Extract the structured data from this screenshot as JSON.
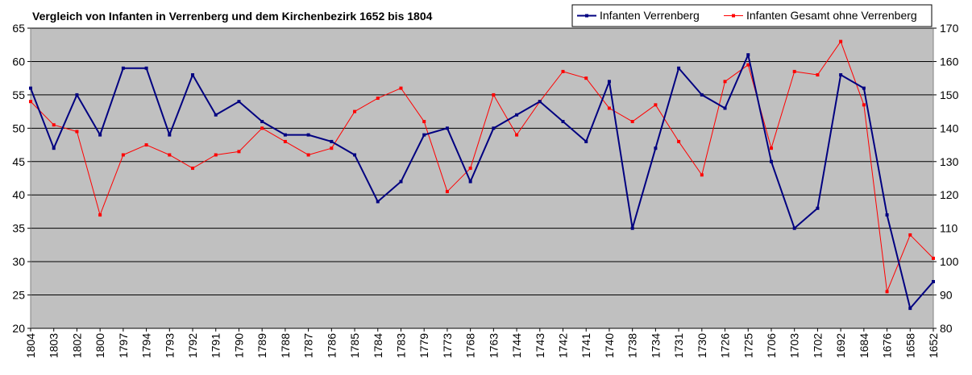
{
  "chart_data": {
    "type": "line",
    "title": "Vergleich von Infanten in Verrenberg und dem Kirchenbezirk 1652 bis 1804",
    "xlabel": "",
    "ylabel": "",
    "categories": [
      "1804",
      "1803",
      "1802",
      "1800",
      "1797",
      "1794",
      "1793",
      "1792",
      "1791",
      "1790",
      "1789",
      "1788",
      "1787",
      "1786",
      "1785",
      "1784",
      "1783",
      "1779",
      "1773",
      "1768",
      "1763",
      "1744",
      "1743",
      "1742",
      "1741",
      "1740",
      "1738",
      "1734",
      "1731",
      "1730",
      "1726",
      "1725",
      "1706",
      "1703",
      "1702",
      "1692",
      "1684",
      "1676",
      "1658",
      "1652"
    ],
    "series": [
      {
        "name": "Infanten Verrenberg",
        "axis": "left",
        "color": "#000080",
        "values": [
          56,
          47,
          55,
          49,
          59,
          59,
          49,
          58,
          52,
          54,
          51,
          49,
          49,
          48,
          46,
          39,
          42,
          49,
          50,
          42,
          50,
          52,
          54,
          51,
          48,
          57,
          35,
          47,
          59,
          55,
          53,
          61,
          45,
          35,
          38,
          58,
          56,
          37,
          23,
          27
        ]
      },
      {
        "name": "Infanten Gesamt ohne Verrenberg",
        "axis": "right",
        "color": "#ff0000",
        "values": [
          148,
          141,
          139,
          114,
          132,
          135,
          132,
          128,
          132,
          133,
          140,
          136,
          132,
          134,
          145,
          149,
          152,
          142,
          121,
          128,
          150,
          138,
          148,
          157,
          155,
          146,
          142,
          147,
          136,
          126,
          154,
          159,
          134,
          157,
          156,
          166,
          147,
          91,
          108,
          101
        ]
      }
    ],
    "ylim_left": [
      20,
      65
    ],
    "yticks_left": [
      20,
      25,
      30,
      35,
      40,
      45,
      50,
      55,
      60,
      65
    ],
    "ylim_right": [
      80,
      170
    ],
    "yticks_right": [
      80,
      90,
      100,
      110,
      120,
      130,
      140,
      150,
      160,
      170
    ],
    "grid": true,
    "legend": "top-right",
    "plot_background": "#c0c0c0"
  }
}
